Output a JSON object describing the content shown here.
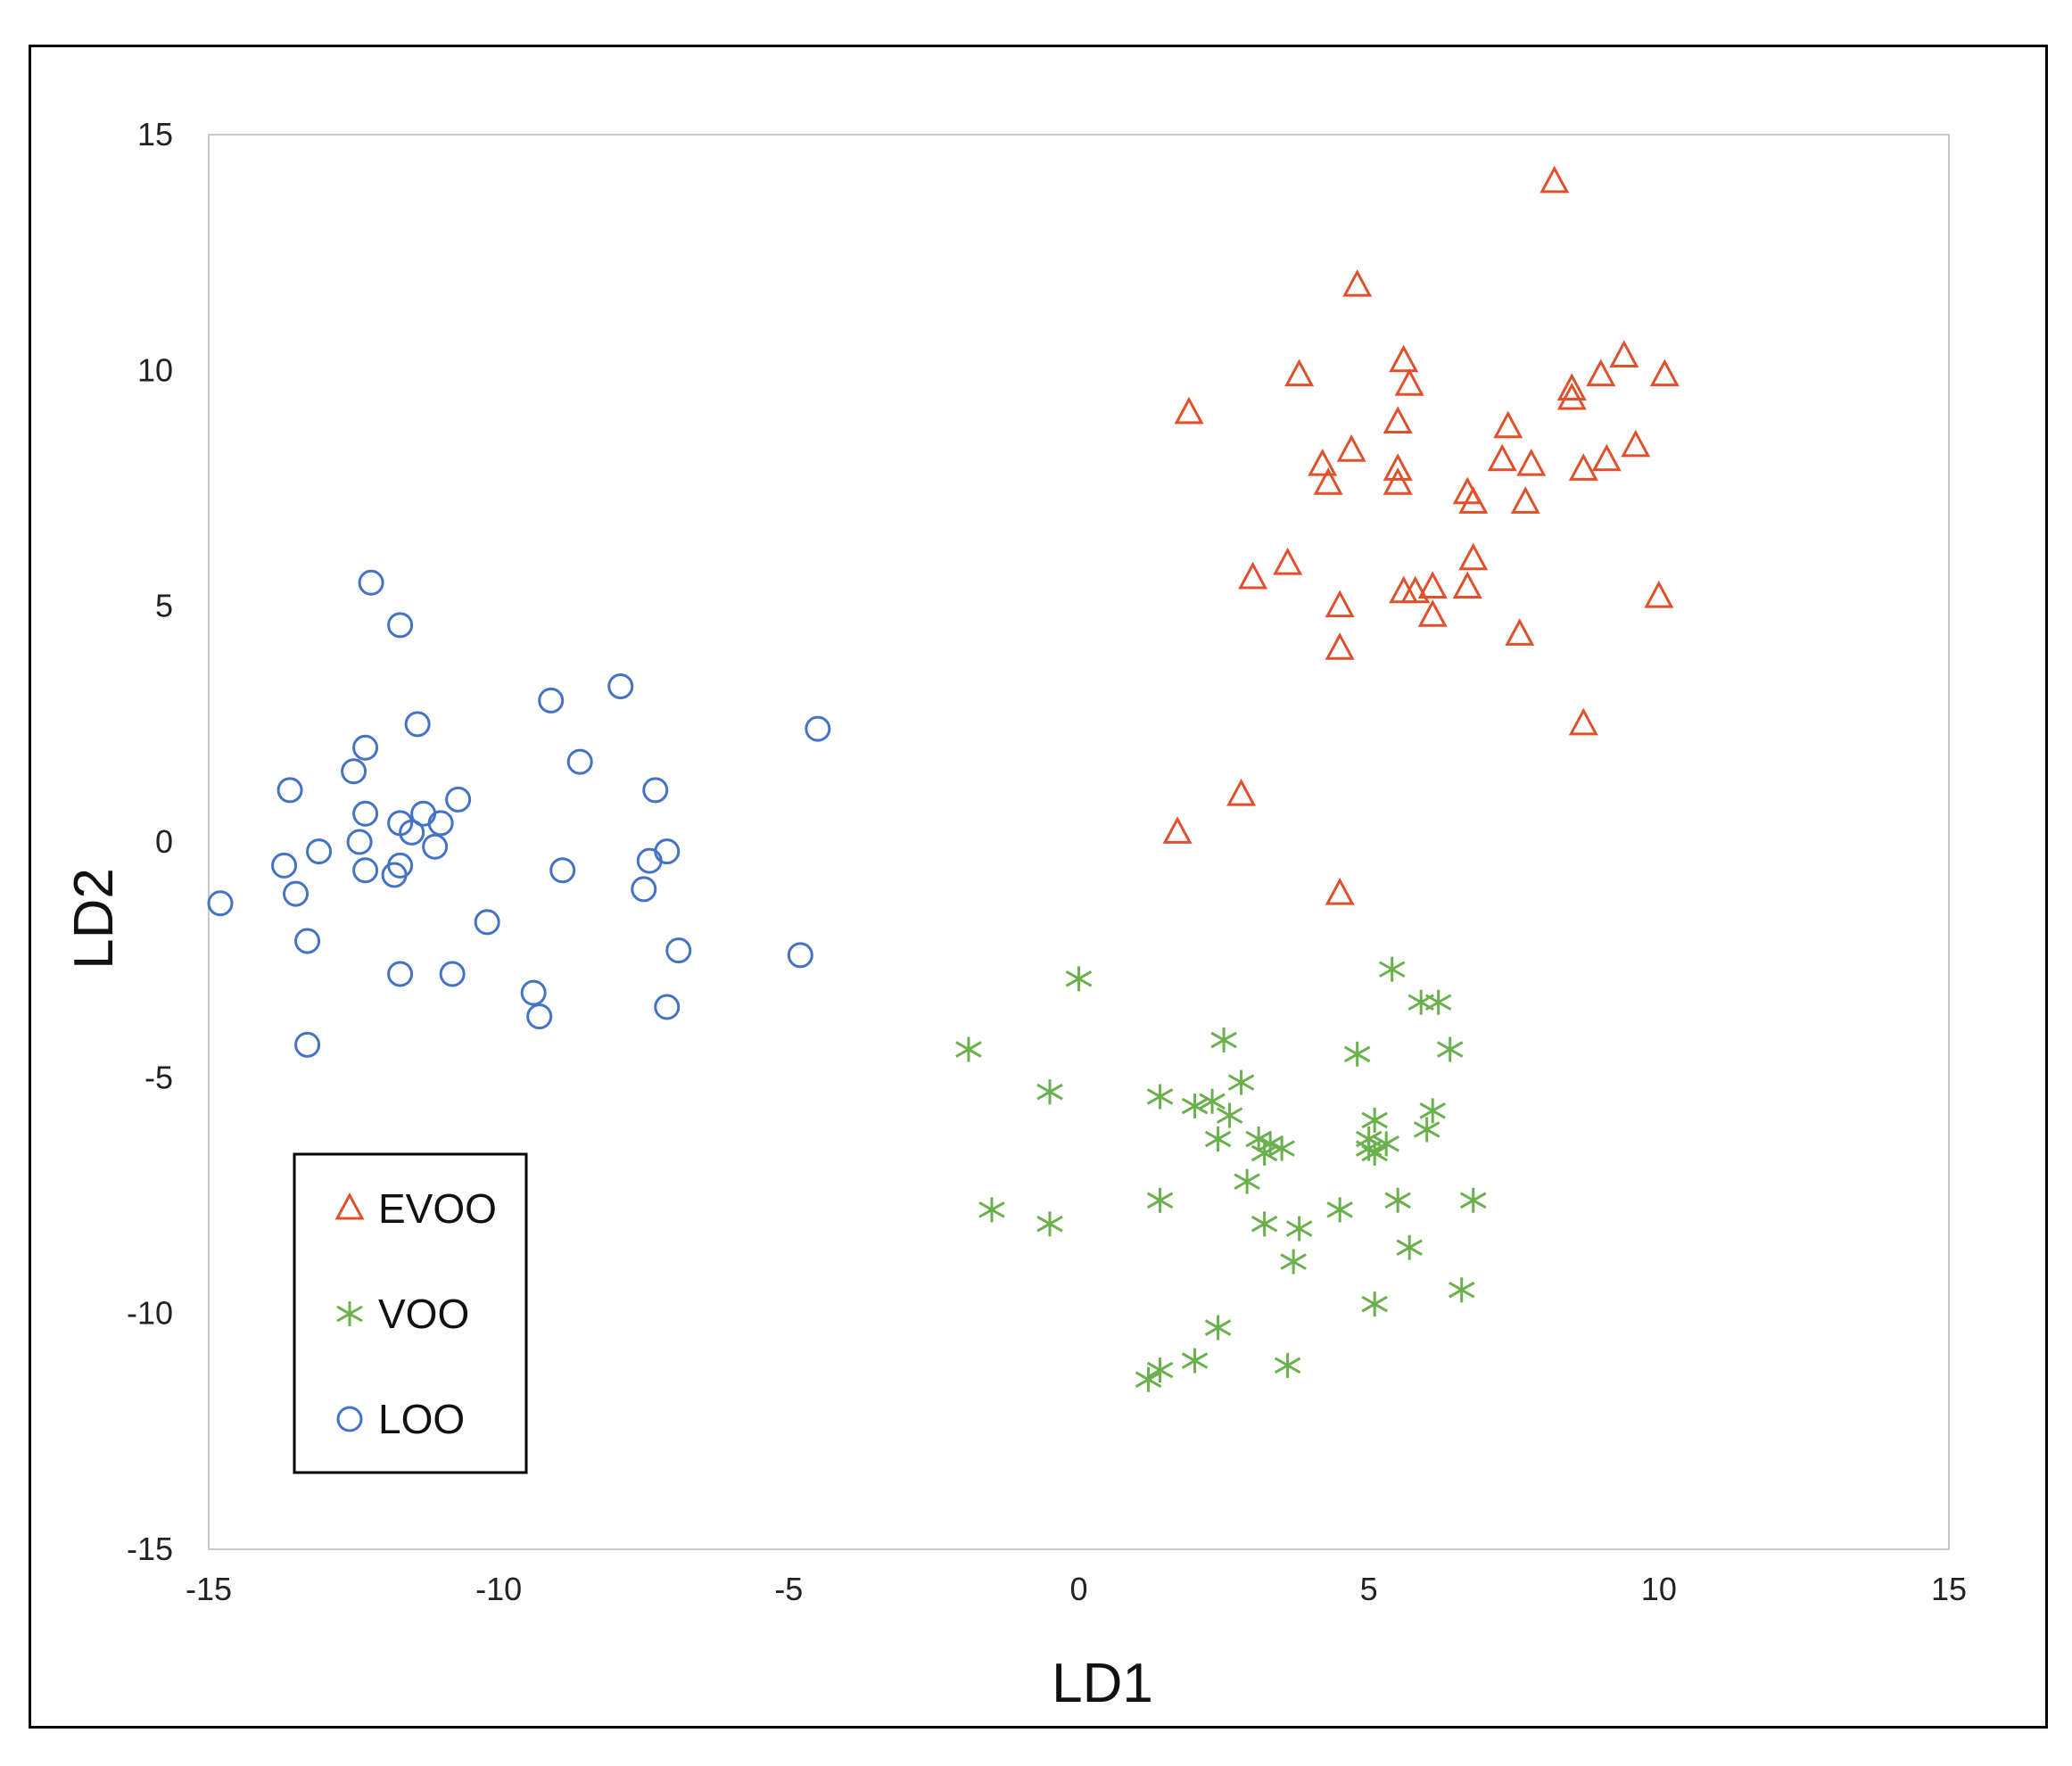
{
  "chart_data": {
    "type": "scatter",
    "title": "",
    "xlabel": "LD1",
    "ylabel": "LD2",
    "xlim": [
      -15,
      15
    ],
    "ylim": [
      -15,
      15
    ],
    "xticks": [
      -15,
      -10,
      -5,
      0,
      5,
      10,
      15
    ],
    "yticks": [
      -15,
      -10,
      -5,
      0,
      5,
      10,
      15
    ],
    "grid": false,
    "legend_position": "bottom-left",
    "series": [
      {
        "name": "EVOO",
        "marker": "triangle",
        "color": "#E0502A",
        "points": [
          [
            8.2,
            14.0
          ],
          [
            4.8,
            11.8
          ],
          [
            5.6,
            10.2
          ],
          [
            3.8,
            9.9
          ],
          [
            5.7,
            9.7
          ],
          [
            9.4,
            10.3
          ],
          [
            10.1,
            9.9
          ],
          [
            9.0,
            9.9
          ],
          [
            8.5,
            9.6
          ],
          [
            8.5,
            9.4
          ],
          [
            1.9,
            9.1
          ],
          [
            5.5,
            8.9
          ],
          [
            7.4,
            8.8
          ],
          [
            4.7,
            8.3
          ],
          [
            9.6,
            8.4
          ],
          [
            9.1,
            8.1
          ],
          [
            7.3,
            8.1
          ],
          [
            7.8,
            8.0
          ],
          [
            8.7,
            7.9
          ],
          [
            4.2,
            8.0
          ],
          [
            5.5,
            7.9
          ],
          [
            4.3,
            7.6
          ],
          [
            5.5,
            7.6
          ],
          [
            6.7,
            7.4
          ],
          [
            6.8,
            7.2
          ],
          [
            7.7,
            7.2
          ],
          [
            6.8,
            6.0
          ],
          [
            3.6,
            5.9
          ],
          [
            3.0,
            5.6
          ],
          [
            6.7,
            5.4
          ],
          [
            5.6,
            5.3
          ],
          [
            5.8,
            5.3
          ],
          [
            6.1,
            5.4
          ],
          [
            10.0,
            5.2
          ],
          [
            4.5,
            5.0
          ],
          [
            6.1,
            4.8
          ],
          [
            7.6,
            4.4
          ],
          [
            4.5,
            4.1
          ],
          [
            8.7,
            2.5
          ],
          [
            2.8,
            1.0
          ],
          [
            1.7,
            0.2
          ],
          [
            4.5,
            -1.1
          ]
        ]
      },
      {
        "name": "VOO",
        "marker": "star",
        "color": "#6AB04C",
        "points": [
          [
            5.4,
            -2.7
          ],
          [
            0.0,
            -2.9
          ],
          [
            5.9,
            -3.4
          ],
          [
            6.2,
            -3.4
          ],
          [
            2.5,
            -4.2
          ],
          [
            -1.9,
            -4.4
          ],
          [
            6.4,
            -4.4
          ],
          [
            4.8,
            -4.5
          ],
          [
            2.8,
            -5.1
          ],
          [
            -0.5,
            -5.3
          ],
          [
            1.4,
            -5.4
          ],
          [
            2.0,
            -5.6
          ],
          [
            2.3,
            -5.5
          ],
          [
            2.6,
            -5.8
          ],
          [
            6.1,
            -5.7
          ],
          [
            5.1,
            -5.9
          ],
          [
            6.0,
            -6.1
          ],
          [
            5.0,
            -6.3
          ],
          [
            2.4,
            -6.3
          ],
          [
            3.1,
            -6.3
          ],
          [
            3.3,
            -6.4
          ],
          [
            3.5,
            -6.5
          ],
          [
            3.2,
            -6.6
          ],
          [
            5.3,
            -6.4
          ],
          [
            5.0,
            -6.5
          ],
          [
            5.1,
            -6.6
          ],
          [
            2.9,
            -7.2
          ],
          [
            1.4,
            -7.6
          ],
          [
            6.8,
            -7.6
          ],
          [
            5.5,
            -7.6
          ],
          [
            -1.5,
            -7.8
          ],
          [
            4.5,
            -7.8
          ],
          [
            -0.5,
            -8.1
          ],
          [
            3.2,
            -8.1
          ],
          [
            3.8,
            -8.2
          ],
          [
            5.7,
            -8.6
          ],
          [
            3.7,
            -8.9
          ],
          [
            6.6,
            -9.5
          ],
          [
            5.1,
            -9.8
          ],
          [
            2.4,
            -10.3
          ],
          [
            2.0,
            -11.0
          ],
          [
            1.4,
            -11.2
          ],
          [
            3.6,
            -11.1
          ],
          [
            1.2,
            -11.4
          ]
        ]
      },
      {
        "name": "LOO",
        "marker": "circle",
        "color": "#4472C4",
        "points": [
          [
            -12.2,
            5.5
          ],
          [
            -11.7,
            4.6
          ],
          [
            -7.9,
            3.3
          ],
          [
            -9.1,
            3.0
          ],
          [
            -11.4,
            2.5
          ],
          [
            -4.5,
            2.4
          ],
          [
            -12.3,
            2.0
          ],
          [
            -8.6,
            1.7
          ],
          [
            -12.5,
            1.5
          ],
          [
            -13.6,
            1.1
          ],
          [
            -7.3,
            1.1
          ],
          [
            -10.7,
            0.9
          ],
          [
            -12.3,
            0.6
          ],
          [
            -11.3,
            0.6
          ],
          [
            -11.0,
            0.4
          ],
          [
            -11.7,
            0.4
          ],
          [
            -11.5,
            0.2
          ],
          [
            -12.4,
            0.0
          ],
          [
            -11.1,
            -0.1
          ],
          [
            -13.1,
            -0.2
          ],
          [
            -7.1,
            -0.2
          ],
          [
            -7.4,
            -0.4
          ],
          [
            -13.7,
            -0.5
          ],
          [
            -11.7,
            -0.5
          ],
          [
            -12.3,
            -0.6
          ],
          [
            -11.8,
            -0.7
          ],
          [
            -8.9,
            -0.6
          ],
          [
            -13.5,
            -1.1
          ],
          [
            -7.5,
            -1.0
          ],
          [
            -14.8,
            -1.3
          ],
          [
            -10.2,
            -1.7
          ],
          [
            -13.3,
            -2.1
          ],
          [
            -6.9,
            -2.3
          ],
          [
            -4.8,
            -2.4
          ],
          [
            -11.7,
            -2.8
          ],
          [
            -10.8,
            -2.8
          ],
          [
            -9.4,
            -3.2
          ],
          [
            -7.1,
            -3.5
          ],
          [
            -9.3,
            -3.7
          ],
          [
            -13.3,
            -4.3
          ]
        ]
      }
    ]
  }
}
